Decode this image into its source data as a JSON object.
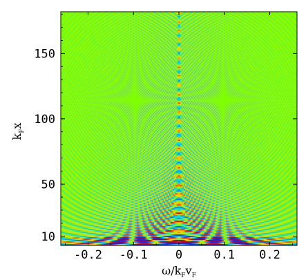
{
  "chart_data": {
    "type": "heatmap",
    "title": "",
    "xlabel": {
      "main": "ω/k",
      "sub1": "F",
      "mid": "v",
      "sub2": "F"
    },
    "ylabel": {
      "main": "k",
      "sub": "F",
      "tail": "x"
    },
    "xlim": [
      -0.26,
      0.26
    ],
    "ylim": [
      3,
      182
    ],
    "x_ticks": [
      {
        "value": -0.2,
        "label": "-0.2"
      },
      {
        "value": -0.1,
        "label": "-0.1"
      },
      {
        "value": 0,
        "label": "0"
      },
      {
        "value": 0.1,
        "label": "0.1"
      },
      {
        "value": 0.2,
        "label": "0.2"
      }
    ],
    "y_ticks": [
      {
        "value": 10,
        "label": "10"
      },
      {
        "value": 50,
        "label": "50"
      },
      {
        "value": 100,
        "label": "100"
      },
      {
        "value": 150,
        "label": "150"
      }
    ],
    "colormap": {
      "background": "#80ff00",
      "high": "#ff0000",
      "mid_high": "#ffd000",
      "mid_low": "#00d0ff",
      "low": "#0030ff",
      "peak": "#a00050"
    },
    "description_features": {
      "central_ridge_x": 0,
      "fringe_pattern": "hyperbolic interference fringes around omega = 0, amplitude decaying with kFx"
    }
  }
}
